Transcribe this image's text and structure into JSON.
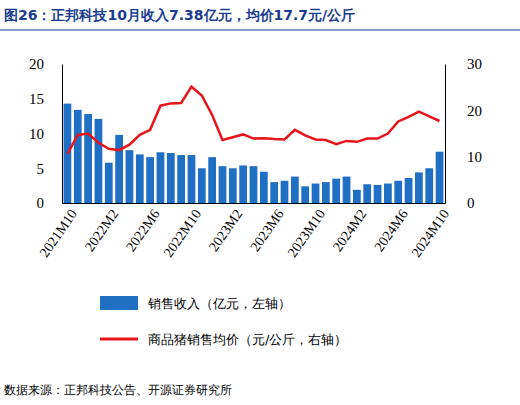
{
  "chart_data": {
    "type": "bar",
    "title": "图26：正邦科技10月收入7.38亿元，均价17.7元/公斤",
    "source": "数据来源：正邦科技公告、开源证券研究所",
    "categories": [
      "2021M10",
      null,
      null,
      null,
      "2022M2",
      null,
      null,
      null,
      "2022M6",
      null,
      null,
      null,
      "2022M10",
      null,
      null,
      null,
      "2023M2",
      null,
      null,
      null,
      "2023M6",
      null,
      null,
      null,
      "2023M10",
      null,
      null,
      null,
      "2024M2",
      null,
      null,
      null,
      "2024M6",
      null,
      null,
      null,
      "2024M10"
    ],
    "series": [
      {
        "name": "销售收入（亿元，左轴）",
        "type": "bar",
        "color": "#1f6fc4",
        "values": [
          14.3,
          13.4,
          12.8,
          12.1,
          5.8,
          9.8,
          7.6,
          7.0,
          6.6,
          7.3,
          7.2,
          6.9,
          6.9,
          5.0,
          6.6,
          5.3,
          5.0,
          5.4,
          5.3,
          4.5,
          3.0,
          3.2,
          3.8,
          2.4,
          2.8,
          3.0,
          3.5,
          3.8,
          1.9,
          2.7,
          2.6,
          2.8,
          3.2,
          3.6,
          4.4,
          5.0,
          7.38
        ]
      },
      {
        "name": "商品猪销售均价（元/公斤，右轴）",
        "type": "line",
        "color": "#e8141b",
        "axis": "y2",
        "values": [
          10.6,
          14.7,
          15.0,
          13.0,
          11.7,
          11.4,
          12.6,
          14.7,
          15.8,
          21.0,
          21.5,
          21.6,
          25.1,
          23.2,
          19.0,
          13.6,
          14.2,
          14.8,
          13.9,
          14.0,
          13.8,
          13.7,
          15.8,
          14.6,
          13.7,
          13.6,
          12.7,
          13.4,
          13.2,
          13.9,
          13.9,
          15.0,
          17.6,
          18.6,
          19.7,
          18.7,
          17.7
        ]
      }
    ],
    "ylim": [
      0,
      20
    ],
    "yticks": [
      0,
      5,
      10,
      15,
      20
    ],
    "y2lim": [
      0,
      30
    ],
    "y2ticks": [
      0,
      10,
      20,
      30
    ],
    "legend": "bottom"
  }
}
